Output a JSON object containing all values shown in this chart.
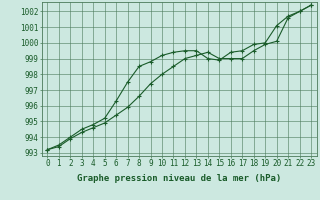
{
  "x": [
    0,
    1,
    2,
    3,
    4,
    5,
    6,
    7,
    8,
    9,
    10,
    11,
    12,
    13,
    14,
    15,
    16,
    17,
    18,
    19,
    20,
    21,
    22,
    23
  ],
  "line1": [
    993.2,
    993.5,
    994.0,
    994.5,
    994.8,
    995.2,
    996.3,
    997.5,
    998.5,
    998.8,
    999.2,
    999.4,
    999.5,
    999.5,
    999.0,
    998.9,
    999.4,
    999.5,
    999.9,
    1000.0,
    1001.1,
    1001.7,
    1002.0,
    1002.4
  ],
  "line2": [
    993.2,
    993.4,
    993.9,
    994.3,
    994.6,
    994.9,
    995.4,
    995.9,
    996.6,
    997.4,
    998.0,
    998.5,
    999.0,
    999.2,
    999.4,
    999.0,
    999.0,
    999.0,
    999.5,
    999.9,
    1000.1,
    1001.6,
    1002.0,
    1002.4
  ],
  "bg_color": "#cce8e0",
  "grid_color": "#4a7a5a",
  "line_color": "#1a5c2a",
  "xlabel": "Graphe pression niveau de la mer (hPa)",
  "ylim": [
    992.8,
    1002.6
  ],
  "yticks": [
    993,
    994,
    995,
    996,
    997,
    998,
    999,
    1000,
    1001,
    1002
  ],
  "xticks": [
    0,
    1,
    2,
    3,
    4,
    5,
    6,
    7,
    8,
    9,
    10,
    11,
    12,
    13,
    14,
    15,
    16,
    17,
    18,
    19,
    20,
    21,
    22,
    23
  ],
  "tick_fontsize": 5.5,
  "xlabel_fontsize": 6.5
}
